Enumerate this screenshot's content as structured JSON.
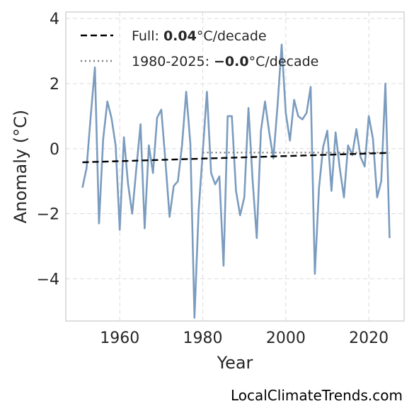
{
  "chart_data": {
    "type": "line",
    "xlabel": "Year",
    "ylabel": "Anomaly (°C)",
    "xlim": [
      1947,
      2028.5
    ],
    "ylim": [
      -5.3,
      4.2
    ],
    "xticks": [
      1960,
      1980,
      2000,
      2020
    ],
    "yticks": [
      -4,
      -2,
      0,
      2,
      4
    ],
    "ytick_labels": [
      "−4",
      "−2",
      "0",
      "2",
      "4"
    ],
    "grid": true,
    "legend_position": "top-left",
    "colors": {
      "anomaly": "#7b9cbf",
      "full_trend": "#000000",
      "recent_trend": "#808080",
      "grid": "#dcdcdc",
      "frame": "#cccccc"
    },
    "series": [
      {
        "x": [
          1951,
          1952,
          1953,
          1954,
          1955,
          1956,
          1957,
          1958,
          1959,
          1960,
          1961,
          1962,
          1963,
          1964,
          1965,
          1966,
          1967,
          1968,
          1969,
          1970,
          1971,
          1972,
          1973,
          1974,
          1975,
          1976,
          1977,
          1978,
          1979,
          1980,
          1981,
          1982,
          1983,
          1984,
          1985,
          1986,
          1987,
          1988,
          1989,
          1990,
          1991,
          1992,
          1993,
          1994,
          1995,
          1996,
          1997,
          1998,
          1999,
          2000,
          2001,
          2002,
          2003,
          2004,
          2005,
          2006,
          2007,
          2008,
          2009,
          2010,
          2011,
          2012,
          2013,
          2014,
          2015,
          2016,
          2017,
          2018,
          2019,
          2020,
          2021,
          2022,
          2023,
          2024,
          2025
        ],
        "values": [
          -1.2,
          -0.6,
          1.0,
          2.5,
          -2.3,
          0.3,
          1.45,
          0.95,
          0.1,
          -2.5,
          0.35,
          -1.1,
          -2.0,
          -0.6,
          0.75,
          -2.45,
          0.1,
          -0.75,
          0.95,
          1.2,
          -0.4,
          -2.1,
          -1.15,
          -1.0,
          0.1,
          1.75,
          0.15,
          -5.2,
          -1.9,
          -0.1,
          1.75,
          -0.75,
          -1.1,
          -0.85,
          -3.6,
          1.0,
          1.0,
          -1.3,
          -2.05,
          -1.5,
          1.25,
          -0.95,
          -2.75,
          0.55,
          1.45,
          0.5,
          -0.3,
          1.3,
          3.2,
          1.1,
          0.25,
          1.5,
          1.0,
          0.9,
          1.1,
          1.9,
          -3.85,
          -1.2,
          0.05,
          0.55,
          -1.3,
          0.5,
          -0.6,
          -1.5,
          0.1,
          -0.2,
          0.6,
          -0.25,
          -0.55,
          1.0,
          0.3,
          -1.5,
          -1.0,
          2.0,
          -2.75
        ]
      }
    ],
    "trends": {
      "full": {
        "x": [
          1951,
          2025
        ],
        "y": [
          -0.42,
          -0.13
        ]
      },
      "recent": {
        "x": [
          1980,
          2025
        ],
        "y": [
          -0.12,
          -0.12
        ]
      }
    },
    "legend": [
      {
        "prefix": "Full: ",
        "value": "0.04",
        "suffix": "°C/decade",
        "style": "dashed"
      },
      {
        "prefix": "1980-2025: ",
        "value": "−0.0",
        "suffix": "°C/decade",
        "style": "dotted"
      }
    ]
  },
  "source": "LocalClimateTrends.com"
}
